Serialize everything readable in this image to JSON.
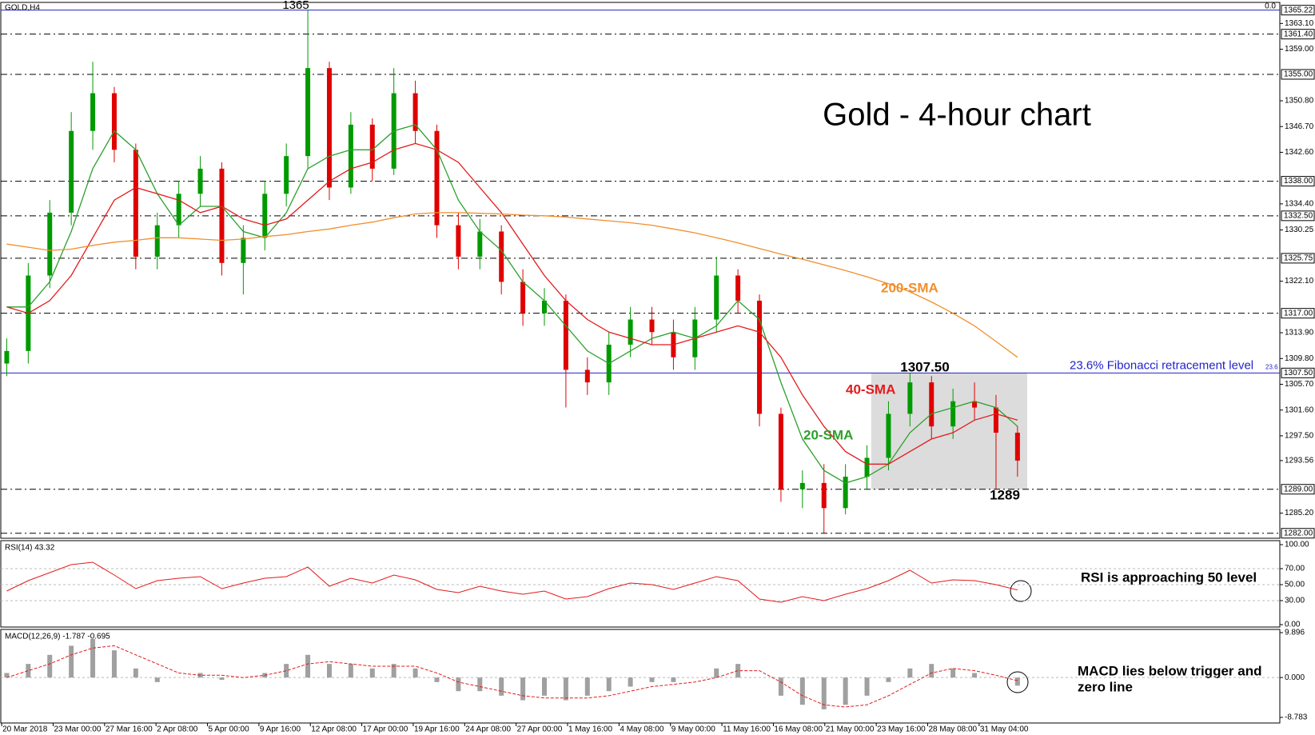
{
  "chart_data": {
    "type": "candlestick",
    "symbol": "GOLD,H4",
    "corner_value": "0.0",
    "title": "Gold - 4-hour chart",
    "x_labels": [
      "20 Mar 2018",
      "23 Mar 00:00",
      "27 Mar 16:00",
      "2 Apr 08:00",
      "5 Apr 00:00",
      "9 Apr 16:00",
      "12 Apr 08:00",
      "17 Apr 00:00",
      "19 Apr 16:00",
      "24 Apr 08:00",
      "27 Apr 00:00",
      "1 May 16:00",
      "4 May 08:00",
      "9 May 00:00",
      "11 May 16:00",
      "16 May 08:00",
      "21 May 00:00",
      "23 May 16:00",
      "28 May 08:00",
      "31 May 04:00"
    ],
    "up_color": "#009a00",
    "down_color": "#e00000",
    "ohlc": {
      "open": [
        1309,
        1311,
        1323,
        1333,
        1346,
        1352,
        1343,
        1326,
        1331,
        1336,
        1340,
        1325,
        1329,
        1336,
        1342,
        1356,
        1337,
        1347,
        1340,
        1352,
        1346,
        1331,
        1326,
        1330,
        1322,
        1317,
        1319,
        1308,
        1306,
        1312,
        1316,
        1314,
        1310,
        1316,
        1323,
        1319,
        1301,
        1289,
        1290,
        1286,
        1291,
        1294,
        1301,
        1306,
        1299,
        1303,
        1302,
        1298
      ],
      "high": [
        1313,
        1325,
        1335,
        1349,
        1357,
        1353,
        1344,
        1333,
        1338,
        1342,
        1341,
        1331,
        1338,
        1344,
        1365.22,
        1357,
        1349,
        1348,
        1356,
        1354,
        1347,
        1333,
        1332,
        1331,
        1324,
        1321,
        1320,
        1310,
        1314,
        1318,
        1318,
        1316,
        1318,
        1326,
        1324,
        1320,
        1302,
        1292,
        1293,
        1293,
        1296,
        1303,
        1307.5,
        1307,
        1305,
        1306,
        1304,
        1299
      ],
      "low": [
        1307,
        1309,
        1321,
        1331,
        1343,
        1341,
        1324,
        1324,
        1329,
        1334,
        1323,
        1320,
        1327,
        1334,
        1340,
        1335,
        1336,
        1338,
        1339,
        1344,
        1329,
        1324,
        1324,
        1320,
        1315,
        1315,
        1302,
        1304,
        1304,
        1310,
        1312,
        1308,
        1308,
        1314,
        1317,
        1299,
        1287,
        1286,
        1282,
        1285,
        1289,
        1292,
        1299,
        1297,
        1297,
        1300,
        1289,
        1291
      ],
      "close": [
        1311,
        1323,
        1333,
        1346,
        1352,
        1343,
        1326,
        1331,
        1336,
        1340,
        1325,
        1329,
        1336,
        1342,
        1356,
        1337,
        1347,
        1340,
        1352,
        1346,
        1331,
        1326,
        1330,
        1322,
        1317,
        1319,
        1308,
        1306,
        1312,
        1316,
        1314,
        1310,
        1316,
        1323,
        1319,
        1301,
        1289,
        1290,
        1286,
        1291,
        1294,
        1301,
        1306,
        1299,
        1303,
        1302,
        1298,
        1293.56
      ]
    },
    "series": [
      {
        "name": "20-SMA",
        "color": "#2ca02c",
        "values": [
          1318,
          1318,
          1322,
          1330,
          1340,
          1346,
          1343,
          1336,
          1331,
          1334,
          1334,
          1330,
          1329,
          1333,
          1340,
          1342,
          1343,
          1343,
          1346,
          1347,
          1343,
          1335,
          1330,
          1327,
          1322,
          1319,
          1315,
          1311,
          1309,
          1311,
          1313,
          1314,
          1313,
          1315,
          1319,
          1316,
          1306,
          1297,
          1292,
          1290,
          1291,
          1293,
          1298,
          1301,
          1302,
          1303,
          1302,
          1299
        ]
      },
      {
        "name": "40-SMA",
        "color": "#e31a1c",
        "values": [
          1318,
          1317,
          1319,
          1323,
          1329,
          1335,
          1337,
          1336,
          1335,
          1333,
          1334,
          1332,
          1331,
          1332,
          1335,
          1338,
          1340,
          1341,
          1343,
          1344,
          1343,
          1341,
          1337,
          1333,
          1328,
          1323,
          1319,
          1316,
          1314,
          1313,
          1312,
          1312,
          1313,
          1314,
          1315,
          1314,
          1310,
          1304,
          1299,
          1295,
          1293,
          1293,
          1295,
          1297,
          1298,
          1300,
          1301,
          1300
        ]
      },
      {
        "name": "200-SMA",
        "color": "#f28e2b",
        "values": [
          1328,
          1327.5,
          1327,
          1327.2,
          1327.8,
          1328.3,
          1328.6,
          1329,
          1329,
          1328.8,
          1328.6,
          1328.8,
          1329.2,
          1329.5,
          1330,
          1330.4,
          1331,
          1331.5,
          1332.2,
          1332.8,
          1333,
          1333,
          1332.9,
          1332.8,
          1332.6,
          1332.5,
          1332.3,
          1332,
          1331.7,
          1331.4,
          1331,
          1330.4,
          1329.8,
          1329,
          1328.2,
          1327.3,
          1326.4,
          1325.6,
          1324.7,
          1323.8,
          1322.8,
          1321.7,
          1320.4,
          1318.8,
          1317,
          1315,
          1312.5,
          1310
        ]
      }
    ],
    "ylim": [
      1282,
      1365.22
    ],
    "yticks": [
      {
        "value": 1363.1,
        "label": "1363.10"
      },
      {
        "value": 1359,
        "label": "1359.00"
      },
      {
        "value": 1350.8,
        "label": "1350.80"
      },
      {
        "value": 1346.7,
        "label": "1346.70"
      },
      {
        "value": 1342.6,
        "label": "1342.60"
      },
      {
        "value": 1334.4,
        "label": "1334.40"
      },
      {
        "value": 1330.25,
        "label": "1330.25"
      },
      {
        "value": 1322.1,
        "label": "1322.10"
      },
      {
        "value": 1313.9,
        "label": "1313.90"
      },
      {
        "value": 1309.8,
        "label": "1309.80"
      },
      {
        "value": 1305.7,
        "label": "1305.70"
      },
      {
        "value": 1301.6,
        "label": "1301.60"
      },
      {
        "value": 1297.5,
        "label": "1297.50"
      },
      {
        "value": 1293.56,
        "label": "1293.56"
      },
      {
        "value": 1285.2,
        "label": "1285.20"
      }
    ],
    "levels": [
      {
        "value": 1361.4,
        "label": "1361.40"
      },
      {
        "value": 1355,
        "label": "1355.00"
      },
      {
        "value": 1338,
        "label": "1338.00"
      },
      {
        "value": 1332.5,
        "label": "1332.50"
      },
      {
        "value": 1325.75,
        "label": "1325.75"
      },
      {
        "value": 1317,
        "label": "1317.00"
      },
      {
        "value": 1289,
        "label": "1289.00"
      },
      {
        "value": 1282,
        "label": "1282.00"
      }
    ],
    "blue_lines": [
      {
        "value": 1365.22,
        "label": "1365.22"
      },
      {
        "value": 1307.5,
        "label": "1307.50"
      }
    ],
    "fib_label": "23.6% Fibonacci retracement level",
    "fib_small": "23.6",
    "range_box": [
      1289,
      1307.5
    ],
    "price_notes": {
      "high": "1365",
      "box_top": "1307.50",
      "box_bottom": "1289"
    },
    "rsi": {
      "title": "RSI(14) 43.32",
      "color": "#e31a1c",
      "values": [
        42,
        55,
        65,
        75,
        78,
        62,
        45,
        55,
        58,
        60,
        45,
        52,
        58,
        60,
        72,
        48,
        58,
        52,
        62,
        56,
        44,
        40,
        48,
        42,
        38,
        42,
        32,
        35,
        45,
        52,
        50,
        44,
        52,
        60,
        55,
        32,
        28,
        35,
        30,
        38,
        45,
        55,
        68,
        52,
        56,
        55,
        50,
        43.32
      ],
      "ylim": [
        0,
        100
      ],
      "yticks": [
        {
          "value": 100,
          "label": "100.00"
        },
        {
          "value": 70,
          "label": "70.00"
        },
        {
          "value": 50,
          "label": "50.00"
        },
        {
          "value": 30,
          "label": "30.00"
        },
        {
          "value": 0,
          "label": "0.00"
        }
      ],
      "note": "RSI is approaching 50 level"
    },
    "macd": {
      "title": "MACD(12,26,9) -1.787 -0.695",
      "hist_color": "#a0a0a0",
      "signal_color": "#e31a1c",
      "histogram": [
        1,
        3,
        5,
        7,
        8.5,
        6,
        2,
        -1,
        0,
        1,
        -0.5,
        0,
        1,
        3,
        5,
        3,
        3,
        2,
        3,
        2,
        -1,
        -3,
        -3,
        -4,
        -5,
        -4,
        -5,
        -4,
        -3,
        -2,
        -1,
        -1,
        0,
        2,
        3,
        0,
        -4,
        -6,
        -7,
        -6,
        -4,
        -1,
        2,
        3,
        2,
        1,
        0,
        -1.787
      ],
      "signal": [
        0,
        1.5,
        3,
        5,
        6.5,
        7,
        5,
        3,
        1,
        0.5,
        0.5,
        0,
        0.5,
        1.5,
        3,
        3.5,
        3,
        2.5,
        2.5,
        2.5,
        1,
        -1,
        -2,
        -3,
        -4,
        -4.5,
        -4.5,
        -4.5,
        -4,
        -3,
        -2,
        -1.5,
        -1,
        0,
        1.5,
        1.5,
        -1,
        -4,
        -6,
        -6.5,
        -6,
        -4,
        -1.5,
        1,
        2,
        1.5,
        0.5,
        -0.695
      ],
      "ylim": [
        -8.783,
        9.896
      ],
      "yticks": [
        {
          "value": 9.896,
          "label": "9.896"
        },
        {
          "value": 0,
          "label": "0.000"
        },
        {
          "value": -8.783,
          "label": "-8.783"
        }
      ],
      "note": [
        "MACD lies below trigger and",
        "zero line"
      ]
    }
  }
}
